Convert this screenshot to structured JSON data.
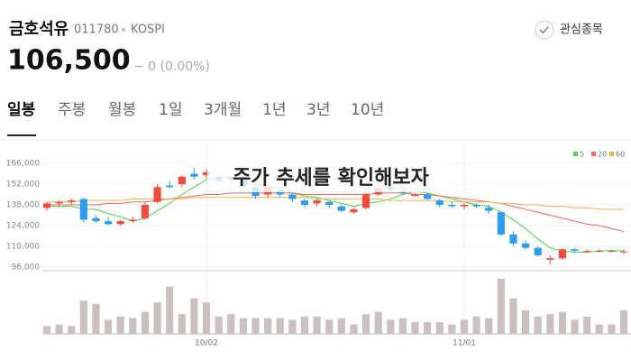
{
  "header": {
    "name": "금호석유",
    "code": "011780",
    "market": "KOSPI",
    "price": "106,500",
    "change": "− 0 (0.00%)",
    "watch_button": "관심종목"
  },
  "tabs": [
    "일봉",
    "주봉",
    "월봉",
    "1일",
    "3개월",
    "1년",
    "3년",
    "10년"
  ],
  "selected_tab": 0,
  "caption": "주가 추세를 확인해보자",
  "chart_data": {
    "type": "candlestick",
    "up_color": "#f04b3c",
    "down_color": "#2f9bf0",
    "volume_color": "#cbbfbf",
    "ylim": [
      96000,
      166000
    ],
    "yticks": [
      {
        "value": 96000,
        "label": "96,000"
      },
      {
        "value": 110000,
        "label": "110,000"
      },
      {
        "value": 124000,
        "label": "124,000"
      },
      {
        "value": 138000,
        "label": "138,000"
      },
      {
        "value": 152000,
        "label": "152,000"
      },
      {
        "value": 166000,
        "label": "166,000"
      }
    ],
    "xlim": [
      0,
      47
    ],
    "xticks": [
      {
        "value": 13,
        "label": "10/02"
      },
      {
        "value": 34,
        "label": "11/01"
      }
    ],
    "open": [
      136000,
      139000,
      140000,
      142000,
      129000,
      127000,
      125000,
      127000,
      129000,
      140000,
      151000,
      152000,
      159000,
      158000,
      157000,
      155000,
      157000,
      150000,
      145000,
      148000,
      145000,
      141000,
      139000,
      140000,
      137000,
      133000,
      136000,
      145000,
      150000,
      147000,
      144000,
      145000,
      141000,
      138000,
      137000,
      138000,
      136000,
      133000,
      118000,
      112000,
      109000,
      101000,
      102000,
      108000,
      107000,
      107000,
      107000,
      106000
    ],
    "high": [
      140000,
      141000,
      142000,
      143000,
      131000,
      130000,
      128000,
      130000,
      140000,
      152000,
      154000,
      158000,
      163000,
      162000,
      159000,
      158000,
      158000,
      152000,
      151000,
      149000,
      146000,
      142000,
      142000,
      141000,
      138000,
      136000,
      146000,
      150000,
      153000,
      149000,
      146000,
      146000,
      142000,
      140000,
      139000,
      139000,
      138000,
      134000,
      120000,
      114000,
      110000,
      104000,
      109000,
      109000,
      108000,
      108000,
      108000,
      108000
    ],
    "low": [
      134000,
      137000,
      138000,
      126000,
      126000,
      124000,
      124000,
      126000,
      128000,
      139000,
      149000,
      150000,
      155000,
      156000,
      152000,
      153000,
      148000,
      142000,
      143000,
      143000,
      140000,
      136000,
      137000,
      136000,
      133000,
      132000,
      135000,
      144000,
      147000,
      145000,
      144000,
      141000,
      136000,
      136000,
      135000,
      136000,
      132000,
      117000,
      110000,
      108000,
      103000,
      98000,
      101000,
      106000,
      106000,
      106000,
      106000,
      105000
    ],
    "close": [
      139000,
      140000,
      141000,
      128000,
      127000,
      125000,
      127000,
      128000,
      138000,
      150000,
      150000,
      157000,
      157000,
      160000,
      154000,
      157000,
      150000,
      144000,
      150000,
      145000,
      142000,
      138000,
      141000,
      138000,
      134000,
      135000,
      145000,
      149000,
      148000,
      146000,
      145000,
      142000,
      138000,
      137000,
      138000,
      137000,
      134000,
      118000,
      112000,
      109000,
      104000,
      102000,
      108000,
      107000,
      107000,
      107000,
      107000,
      106500
    ],
    "y2lim": [
      0,
      80
    ],
    "volume": [
      10,
      12,
      10,
      42,
      38,
      18,
      22,
      20,
      28,
      40,
      60,
      25,
      45,
      40,
      22,
      25,
      20,
      20,
      20,
      20,
      18,
      22,
      22,
      18,
      20,
      12,
      25,
      28,
      18,
      20,
      15,
      15,
      15,
      12,
      18,
      22,
      20,
      70,
      45,
      30,
      22,
      25,
      28,
      18,
      22,
      12,
      12,
      30
    ],
    "series": [
      {
        "name": "5",
        "color": "#4bd24b",
        "values": [
          137000,
          137000,
          137000,
          135000,
          135000,
          132000,
          130000,
          127000,
          129000,
          134000,
          139000,
          145000,
          150000,
          155000,
          156000,
          157000,
          156000,
          152000,
          151000,
          149000,
          146000,
          144000,
          143000,
          141000,
          139000,
          137000,
          139000,
          140000,
          142000,
          145000,
          147000,
          146000,
          144000,
          142000,
          140000,
          138000,
          137000,
          133000,
          128000,
          122000,
          115000,
          109000,
          107000,
          106000,
          106000,
          107000,
          107000,
          107000
        ]
      },
      {
        "name": "20",
        "color": "#f0685a",
        "values": [
          138000,
          138000,
          138000,
          138000,
          138000,
          139000,
          139000,
          140000,
          140000,
          141000,
          142000,
          143000,
          144000,
          145000,
          145000,
          146000,
          146000,
          146000,
          146000,
          146000,
          146000,
          145000,
          145000,
          145000,
          145000,
          145000,
          145000,
          146000,
          146000,
          146000,
          145000,
          145000,
          144000,
          143000,
          142000,
          141000,
          140000,
          139000,
          137000,
          135000,
          133000,
          131000,
          129000,
          127000,
          125000,
          124000,
          122000,
          120000
        ]
      },
      {
        "name": "60",
        "color": "#f5b04f",
        "values": [
          140000,
          140000,
          140000,
          141000,
          141000,
          141000,
          141000,
          142000,
          142000,
          142000,
          142000,
          142000,
          143000,
          143000,
          143000,
          143000,
          143000,
          143000,
          143000,
          143000,
          143000,
          143000,
          142000,
          142000,
          142000,
          142000,
          142000,
          142000,
          141000,
          141000,
          141000,
          141000,
          141000,
          140000,
          140000,
          140000,
          140000,
          139000,
          139000,
          138000,
          138000,
          137000,
          137000,
          136000,
          136000,
          135000,
          135000,
          135000
        ]
      }
    ]
  }
}
